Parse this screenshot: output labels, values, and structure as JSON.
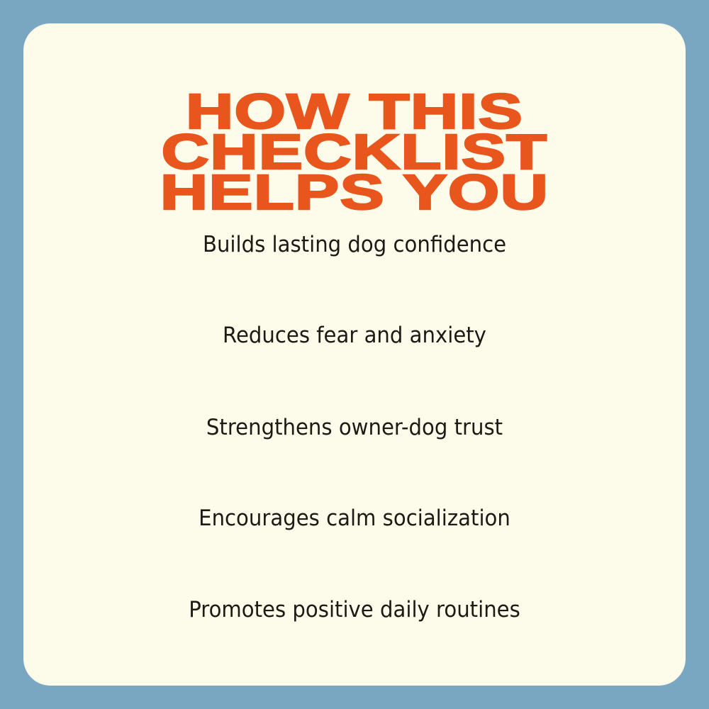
{
  "colors": {
    "background": "#79a6c1",
    "card": "#fdfceb",
    "title": "#e8561d",
    "text": "#1d1a15"
  },
  "title_lines": [
    "HOW THIS",
    "CHECKLIST",
    "HELPS YOU"
  ],
  "items": [
    "Builds lasting dog confidence",
    "Reduces fear and anxiety",
    "Strengthens owner-dog trust",
    "Encourages calm socialization",
    "Promotes positive daily routines"
  ]
}
